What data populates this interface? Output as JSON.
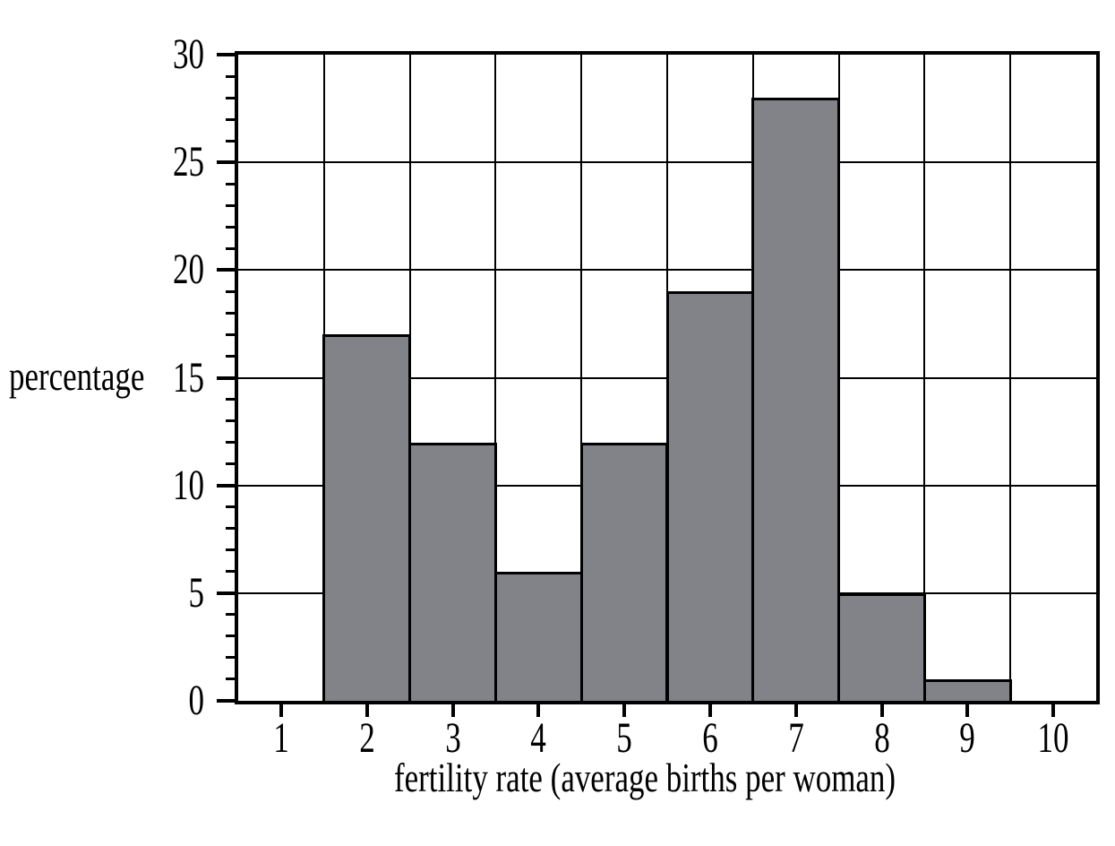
{
  "chart_data": {
    "type": "bar",
    "subtype": "histogram",
    "xlabel": "fertility rate (average births per woman)",
    "ylabel": "percentage",
    "categories": [
      1,
      2,
      3,
      4,
      5,
      6,
      7,
      8,
      9,
      10
    ],
    "values": [
      0,
      17,
      12,
      6,
      12,
      19,
      28,
      5,
      1,
      0
    ],
    "bin_width": 1,
    "xlim": [
      0.5,
      10.5
    ],
    "ylim": [
      0,
      30
    ],
    "x_ticks": [
      1,
      2,
      3,
      4,
      5,
      6,
      7,
      8,
      9,
      10
    ],
    "y_major_ticks": [
      0,
      5,
      10,
      15,
      20,
      25,
      30
    ],
    "y_minor_tick_step": 1,
    "grid": {
      "horizontal_lines_at": [
        5,
        10,
        15,
        20,
        25
      ],
      "vertical_lines_at": [
        1.5,
        2.5,
        3.5,
        4.5,
        5.5,
        6.5,
        7.5,
        8.5,
        9.5
      ]
    },
    "legend": "none",
    "colors": {
      "bar_fill": "#828388",
      "bar_stroke": "#000000",
      "axis": "#000000",
      "grid": "#000000",
      "background": "#ffffff"
    }
  }
}
